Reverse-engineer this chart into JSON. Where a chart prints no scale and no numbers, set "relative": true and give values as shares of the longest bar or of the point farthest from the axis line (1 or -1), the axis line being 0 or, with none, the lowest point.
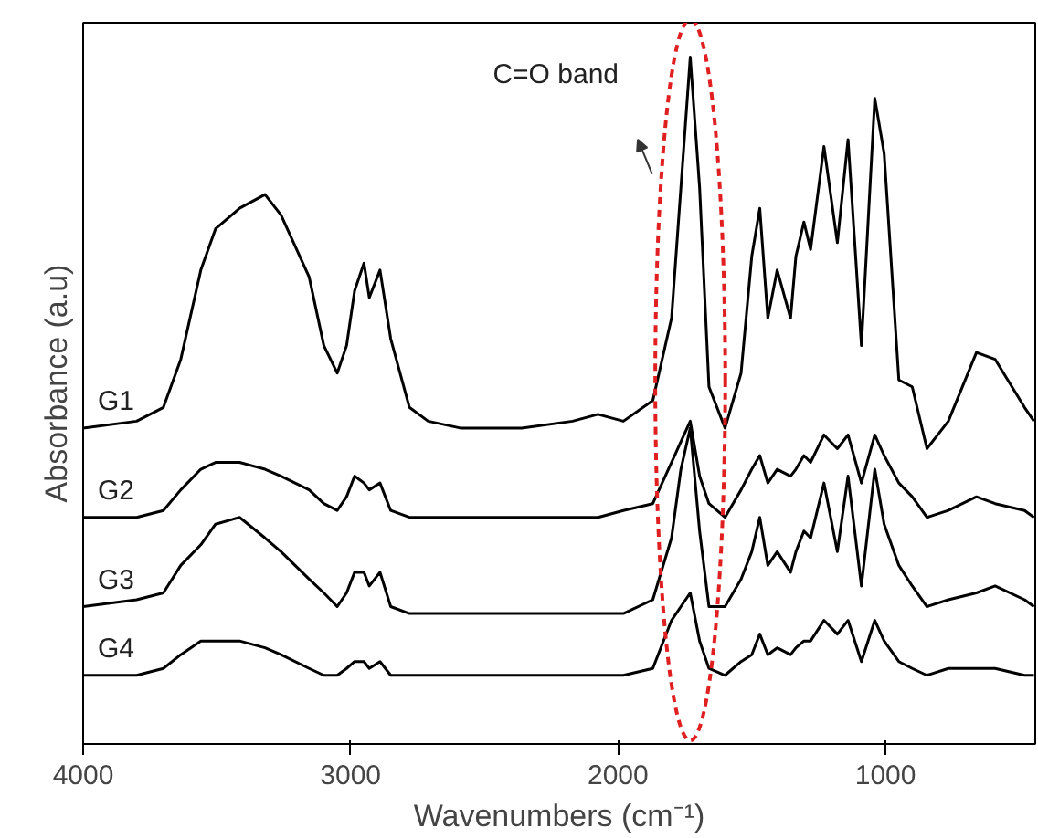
{
  "chart_data": {
    "type": "line",
    "relative": true,
    "xlabel": "Wavenumbers (cm⁻¹)",
    "ylabel": "Absorbance (a.u)",
    "xlim": [
      4000,
      440
    ],
    "xticks": [
      4000,
      3000,
      2000,
      1000
    ],
    "grid": false,
    "legend": false,
    "line_style": "solid",
    "annotations": [
      {
        "text": "C=O band",
        "x": 1730,
        "y": 1.0
      }
    ],
    "x": [
      4000,
      3800,
      3700,
      3635,
      3560,
      3505,
      3415,
      3320,
      3260,
      3155,
      3100,
      3050,
      3015,
      2985,
      2950,
      2930,
      2890,
      2850,
      2780,
      2710,
      2590,
      2360,
      2170,
      2075,
      1980,
      1870,
      1800,
      1765,
      1730,
      1695,
      1660,
      1600,
      1540,
      1500,
      1470,
      1440,
      1405,
      1355,
      1335,
      1305,
      1280,
      1230,
      1180,
      1140,
      1090,
      1040,
      1005,
      950,
      900,
      845,
      765,
      660,
      590,
      480,
      445
    ],
    "series": [
      {
        "name": "G1",
        "color": "#000000",
        "values": [
          0.46,
          0.47,
          0.49,
          0.56,
          0.69,
          0.75,
          0.78,
          0.8,
          0.77,
          0.68,
          0.58,
          0.54,
          0.58,
          0.66,
          0.7,
          0.65,
          0.69,
          0.59,
          0.49,
          0.47,
          0.46,
          0.46,
          0.47,
          0.48,
          0.47,
          0.5,
          0.62,
          0.81,
          1.0,
          0.81,
          0.52,
          0.46,
          0.54,
          0.71,
          0.78,
          0.62,
          0.69,
          0.62,
          0.71,
          0.76,
          0.72,
          0.87,
          0.73,
          0.88,
          0.58,
          0.94,
          0.86,
          0.53,
          0.52,
          0.43,
          0.47,
          0.57,
          0.56,
          0.49,
          0.47
        ]
      },
      {
        "name": "G2",
        "color": "#000000",
        "values": [
          0.33,
          0.33,
          0.34,
          0.37,
          0.4,
          0.41,
          0.41,
          0.4,
          0.39,
          0.37,
          0.35,
          0.34,
          0.36,
          0.39,
          0.38,
          0.37,
          0.38,
          0.34,
          0.33,
          0.33,
          0.33,
          0.33,
          0.33,
          0.33,
          0.34,
          0.35,
          0.41,
          0.44,
          0.47,
          0.39,
          0.35,
          0.33,
          0.37,
          0.4,
          0.42,
          0.38,
          0.4,
          0.39,
          0.4,
          0.42,
          0.41,
          0.45,
          0.43,
          0.45,
          0.38,
          0.45,
          0.42,
          0.38,
          0.36,
          0.33,
          0.34,
          0.36,
          0.35,
          0.34,
          0.33
        ]
      },
      {
        "name": "G3",
        "color": "#000000",
        "values": [
          0.2,
          0.21,
          0.22,
          0.26,
          0.29,
          0.32,
          0.33,
          0.3,
          0.28,
          0.24,
          0.22,
          0.2,
          0.22,
          0.25,
          0.25,
          0.23,
          0.25,
          0.2,
          0.19,
          0.19,
          0.19,
          0.19,
          0.19,
          0.19,
          0.19,
          0.21,
          0.3,
          0.4,
          0.46,
          0.31,
          0.2,
          0.2,
          0.24,
          0.28,
          0.33,
          0.26,
          0.28,
          0.25,
          0.28,
          0.31,
          0.3,
          0.38,
          0.28,
          0.39,
          0.23,
          0.4,
          0.32,
          0.26,
          0.23,
          0.2,
          0.21,
          0.22,
          0.23,
          0.21,
          0.2
        ]
      },
      {
        "name": "G4",
        "color": "#000000",
        "values": [
          0.1,
          0.1,
          0.11,
          0.13,
          0.15,
          0.15,
          0.15,
          0.14,
          0.13,
          0.11,
          0.1,
          0.1,
          0.11,
          0.12,
          0.12,
          0.11,
          0.12,
          0.1,
          0.1,
          0.1,
          0.1,
          0.1,
          0.1,
          0.1,
          0.1,
          0.11,
          0.18,
          0.2,
          0.22,
          0.15,
          0.11,
          0.1,
          0.12,
          0.13,
          0.16,
          0.13,
          0.14,
          0.13,
          0.14,
          0.15,
          0.15,
          0.18,
          0.16,
          0.18,
          0.12,
          0.18,
          0.15,
          0.12,
          0.11,
          0.1,
          0.11,
          0.11,
          0.11,
          0.1,
          0.1
        ]
      }
    ]
  }
}
